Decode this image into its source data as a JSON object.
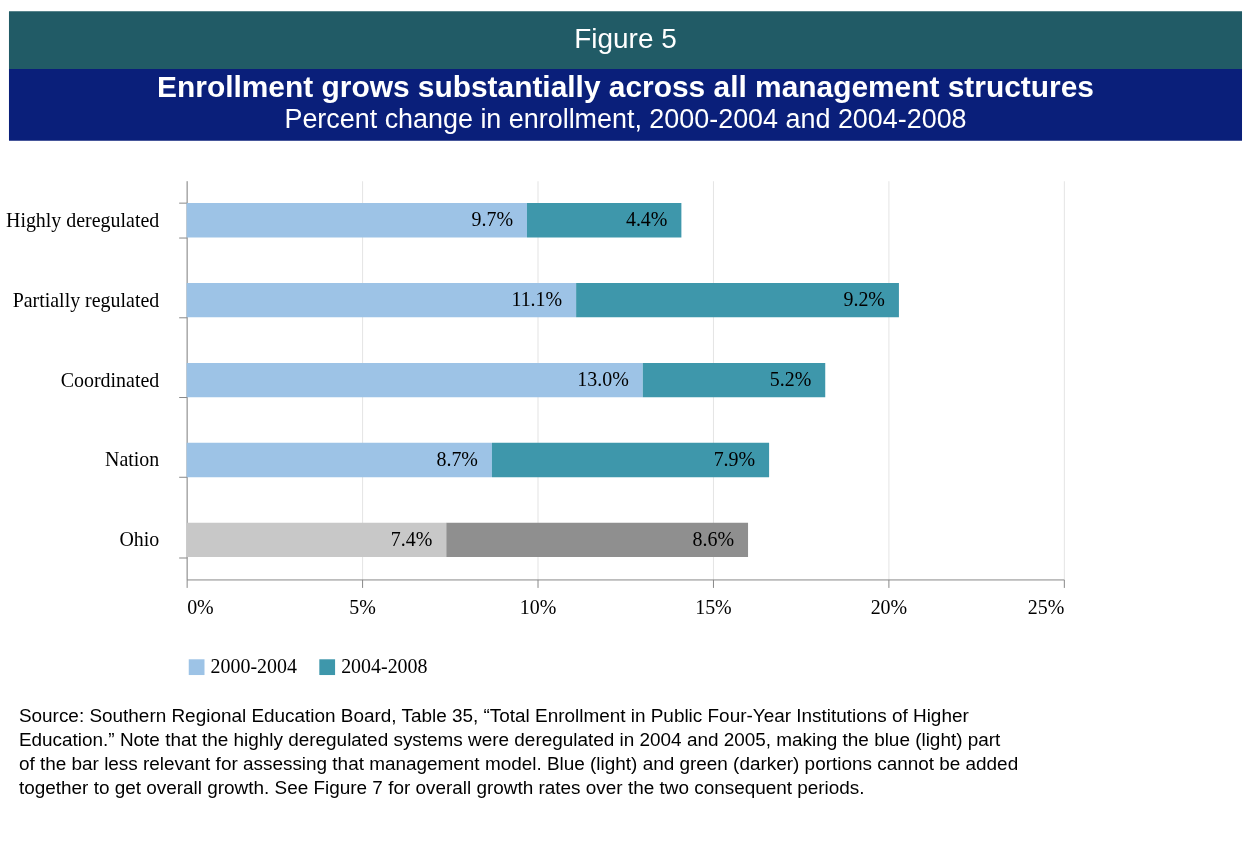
{
  "chart_data": {
    "type": "bar",
    "orientation": "horizontal",
    "stacked": true,
    "title": "Enrollment grows substantially across all management structures",
    "subtitle": "Percent change in enrollment, 2000-2004 and 2004-2008",
    "categories": [
      "Highly deregulated",
      "Partially regulated",
      "Coordinated",
      "Nation",
      "Ohio"
    ],
    "series": [
      {
        "name": "2000-2004",
        "color": "#9dc3e6",
        "colors": [
          "#9dc3e6",
          "#9dc3e6",
          "#9dc3e6",
          "#9dc3e6",
          "#c8c8c8"
        ],
        "values": [
          9.7,
          11.1,
          13.0,
          8.7,
          7.4
        ],
        "value_labels": [
          "9.7%",
          "11.1%",
          "13.0%",
          "8.7%",
          "7.4%"
        ]
      },
      {
        "name": "2004-2008",
        "color": "#3e97ab",
        "colors": [
          "#3e97ab",
          "#3e97ab",
          "#3e97ab",
          "#3e97ab",
          "#8f8f8f"
        ],
        "values": [
          4.4,
          9.2,
          5.2,
          7.9,
          8.6
        ],
        "value_labels": [
          "4.4%",
          "9.2%",
          "5.2%",
          "7.9%",
          "8.6%"
        ]
      }
    ],
    "xlim": [
      0,
      25
    ],
    "xticks": [
      {
        "value": 0,
        "label": "0%"
      },
      {
        "value": 5,
        "label": "5%"
      },
      {
        "value": 10,
        "label": "10%"
      },
      {
        "value": 15,
        "label": "15%"
      },
      {
        "value": 20,
        "label": "20%"
      },
      {
        "value": 25,
        "label": "25%"
      }
    ],
    "grid": "x",
    "legend": "bottom",
    "annotations": [
      "Figure 5",
      "Source: Southern Regional Education Board, Table 35, “Total Enrollment in Public Four-Year Institutions of Higher Education.”  Note that the highly deregulated systems were deregulated in 2004 and 2005, making the blue (light) part of the bar less relevant for assessing that management model. Blue (light) and green (darker) portions cannot be added together to get overall growth. See Figure 7 for overall growth rates over the two consequent periods."
    ]
  }
}
